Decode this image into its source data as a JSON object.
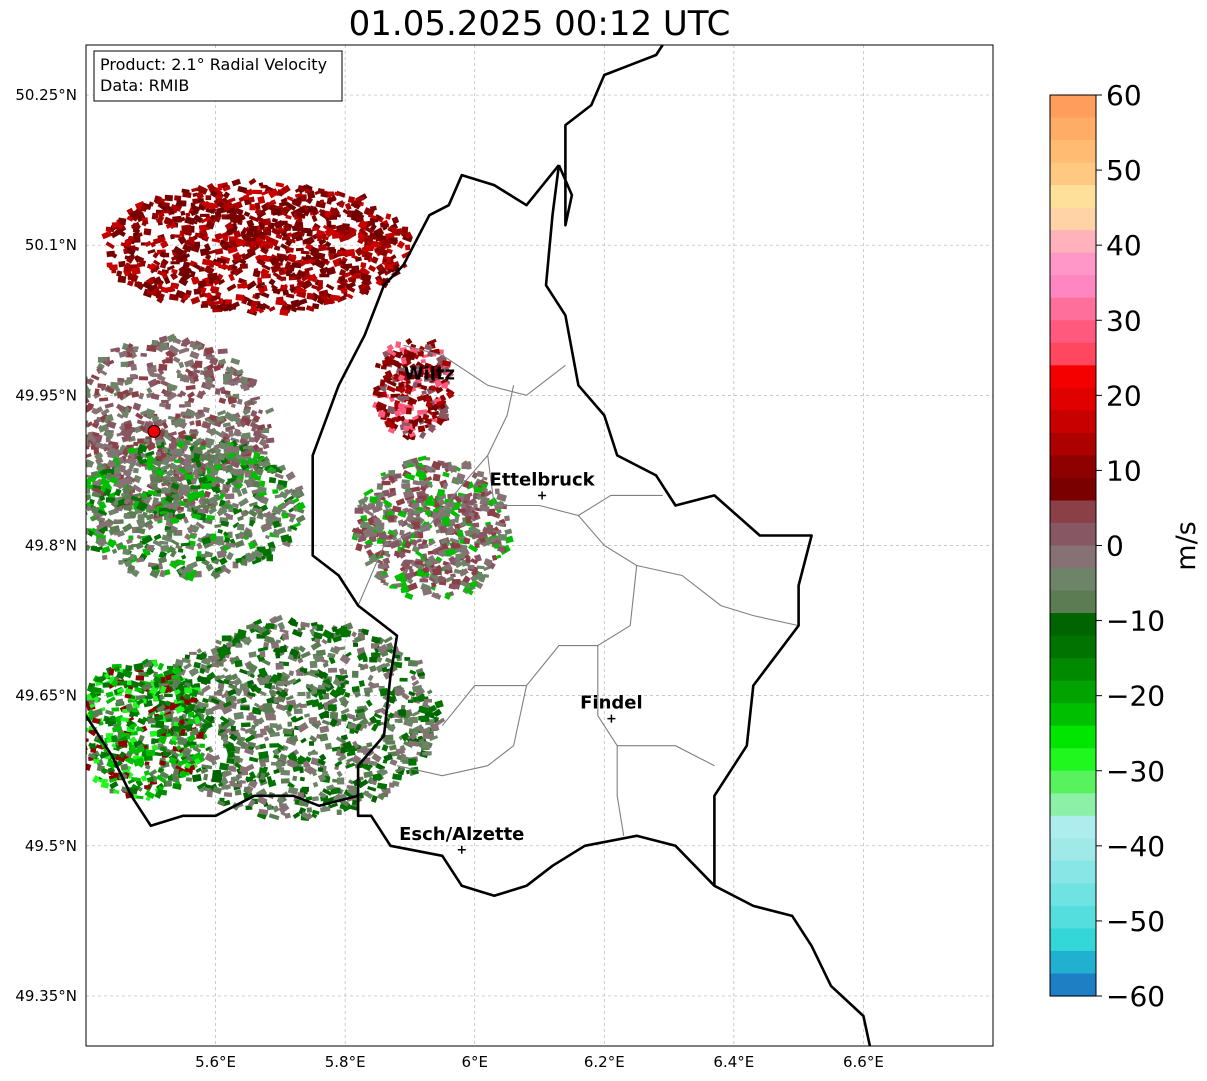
{
  "title": "01.05.2025 00:12 UTC",
  "info_box": {
    "product": "Product: 2.1° Radial Velocity",
    "data": "Data: RMIB"
  },
  "map_extent": {
    "lon_min": 5.4,
    "lon_max": 6.8,
    "lat_min": 49.3,
    "lat_max": 50.3
  },
  "axes": {
    "lon_ticks": [
      {
        "value": 5.6,
        "label": "5.6°E"
      },
      {
        "value": 5.8,
        "label": "5.8°E"
      },
      {
        "value": 6.0,
        "label": "6°E"
      },
      {
        "value": 6.2,
        "label": "6.2°E"
      },
      {
        "value": 6.4,
        "label": "6.4°E"
      },
      {
        "value": 6.6,
        "label": "6.6°E"
      }
    ],
    "lat_ticks": [
      {
        "value": 50.25,
        "label": "50.25°N"
      },
      {
        "value": 50.1,
        "label": "50.1°N"
      },
      {
        "value": 49.95,
        "label": "49.95°N"
      },
      {
        "value": 49.8,
        "label": "49.8°N"
      },
      {
        "value": 49.65,
        "label": "49.65°N"
      },
      {
        "value": 49.5,
        "label": "49.5°N"
      },
      {
        "value": 49.35,
        "label": "49.35°N"
      }
    ]
  },
  "radar_site": {
    "lon": 5.505,
    "lat": 49.914,
    "color": "#ee0000"
  },
  "cities": [
    {
      "name": "Wiltz",
      "lon": 5.93,
      "lat": 49.966,
      "marker": false
    },
    {
      "name": "Ettelbruck",
      "lon": 6.104,
      "lat": 49.85,
      "marker": true
    },
    {
      "name": "Findel",
      "lon": 6.211,
      "lat": 49.627,
      "marker": true
    },
    {
      "name": "Esch/Alzette",
      "lon": 5.98,
      "lat": 49.496,
      "marker": true
    }
  ],
  "colorbar": {
    "label": "m/s",
    "min": -60,
    "max": 60,
    "ticks": [
      {
        "value": 60,
        "label": "60"
      },
      {
        "value": 50,
        "label": "50"
      },
      {
        "value": 40,
        "label": "40"
      },
      {
        "value": 30,
        "label": "30"
      },
      {
        "value": 20,
        "label": "20"
      },
      {
        "value": 10,
        "label": "10"
      },
      {
        "value": 0,
        "label": "0"
      },
      {
        "value": -10,
        "label": "−10"
      },
      {
        "value": -20,
        "label": "−20"
      },
      {
        "value": -30,
        "label": "−30"
      },
      {
        "value": -40,
        "label": "−40"
      },
      {
        "value": -50,
        "label": "−50"
      },
      {
        "value": -60,
        "label": "−60"
      }
    ],
    "segments": [
      {
        "from": 57,
        "to": 60,
        "color": "#ff9d5c"
      },
      {
        "from": 54,
        "to": 57,
        "color": "#ffac66"
      },
      {
        "from": 51,
        "to": 54,
        "color": "#ffbb72"
      },
      {
        "from": 48,
        "to": 51,
        "color": "#ffc982"
      },
      {
        "from": 45,
        "to": 48,
        "color": "#ffe09a"
      },
      {
        "from": 42,
        "to": 45,
        "color": "#ffd3a6"
      },
      {
        "from": 39,
        "to": 42,
        "color": "#ffb2bb"
      },
      {
        "from": 36,
        "to": 39,
        "color": "#ff98c8"
      },
      {
        "from": 33,
        "to": 36,
        "color": "#ff86c0"
      },
      {
        "from": 30,
        "to": 33,
        "color": "#ff6f9c"
      },
      {
        "from": 27,
        "to": 30,
        "color": "#ff5a7e"
      },
      {
        "from": 24,
        "to": 27,
        "color": "#ff4860"
      },
      {
        "from": 21,
        "to": 24,
        "color": "#f40000"
      },
      {
        "from": 18,
        "to": 21,
        "color": "#e00000"
      },
      {
        "from": 15,
        "to": 18,
        "color": "#c80000"
      },
      {
        "from": 12,
        "to": 15,
        "color": "#ad0000"
      },
      {
        "from": 9,
        "to": 12,
        "color": "#8f0000"
      },
      {
        "from": 6,
        "to": 9,
        "color": "#7a0000"
      },
      {
        "from": 3,
        "to": 6,
        "color": "#8b3f47"
      },
      {
        "from": 0,
        "to": 3,
        "color": "#875863"
      },
      {
        "from": -3,
        "to": 0,
        "color": "#867274"
      },
      {
        "from": -6,
        "to": -3,
        "color": "#6d8468"
      },
      {
        "from": -9,
        "to": -6,
        "color": "#5c7d54"
      },
      {
        "from": -12,
        "to": -9,
        "color": "#006400"
      },
      {
        "from": -15,
        "to": -12,
        "color": "#007300"
      },
      {
        "from": -18,
        "to": -15,
        "color": "#008a00"
      },
      {
        "from": -21,
        "to": -18,
        "color": "#00a300"
      },
      {
        "from": -24,
        "to": -21,
        "color": "#00bf00"
      },
      {
        "from": -27,
        "to": -24,
        "color": "#00e600"
      },
      {
        "from": -30,
        "to": -27,
        "color": "#1ff71f"
      },
      {
        "from": -33,
        "to": -30,
        "color": "#58f25e"
      },
      {
        "from": -36,
        "to": -33,
        "color": "#8cf0a6"
      },
      {
        "from": -39,
        "to": -36,
        "color": "#aeeded"
      },
      {
        "from": -42,
        "to": -39,
        "color": "#9fe9e9"
      },
      {
        "from": -45,
        "to": -42,
        "color": "#88e6e6"
      },
      {
        "from": -48,
        "to": -45,
        "color": "#6fe2e2"
      },
      {
        "from": -51,
        "to": -48,
        "color": "#55dede"
      },
      {
        "from": -54,
        "to": -51,
        "color": "#33d7d7"
      },
      {
        "from": -57,
        "to": -54,
        "color": "#22b0d0"
      },
      {
        "from": -60,
        "to": -57,
        "color": "#1e7fc4"
      }
    ]
  },
  "borders": {
    "color": "#000000",
    "national": [
      {
        "name": "germany-luxembourg",
        "points": [
          [
            6.13,
            50.18
          ],
          [
            6.12,
            50.13
          ],
          [
            6.11,
            50.06
          ],
          [
            6.14,
            50.03
          ],
          [
            6.16,
            49.96
          ],
          [
            6.2,
            49.93
          ],
          [
            6.22,
            49.89
          ],
          [
            6.28,
            49.87
          ],
          [
            6.31,
            49.84
          ],
          [
            6.37,
            49.85
          ],
          [
            6.44,
            49.81
          ],
          [
            6.52,
            49.81
          ],
          [
            6.5,
            49.76
          ],
          [
            6.5,
            49.72
          ],
          [
            6.43,
            49.66
          ],
          [
            6.42,
            49.6
          ],
          [
            6.37,
            49.55
          ],
          [
            6.37,
            49.46
          ],
          [
            6.43,
            49.44
          ],
          [
            6.49,
            49.43
          ],
          [
            6.52,
            49.4
          ],
          [
            6.55,
            49.36
          ],
          [
            6.6,
            49.33
          ],
          [
            6.61,
            49.3
          ]
        ]
      },
      {
        "name": "germany-belgium",
        "points": [
          [
            6.13,
            50.18
          ],
          [
            6.15,
            50.15
          ],
          [
            6.14,
            50.12
          ],
          [
            6.14,
            50.22
          ],
          [
            6.18,
            50.24
          ],
          [
            6.2,
            50.27
          ],
          [
            6.28,
            50.29
          ],
          [
            6.29,
            50.3
          ]
        ]
      },
      {
        "name": "luxembourg-belgium",
        "points": [
          [
            6.13,
            50.18
          ],
          [
            6.08,
            50.14
          ],
          [
            6.03,
            50.16
          ],
          [
            5.98,
            50.17
          ],
          [
            5.96,
            50.14
          ],
          [
            5.93,
            50.13
          ],
          [
            5.89,
            50.08
          ],
          [
            5.86,
            50.06
          ],
          [
            5.83,
            50.01
          ],
          [
            5.79,
            49.96
          ],
          [
            5.75,
            49.89
          ],
          [
            5.75,
            49.83
          ],
          [
            5.75,
            49.79
          ],
          [
            5.79,
            49.77
          ],
          [
            5.82,
            49.74
          ],
          [
            5.88,
            49.71
          ],
          [
            5.87,
            49.67
          ],
          [
            5.86,
            49.61
          ],
          [
            5.82,
            49.58
          ],
          [
            5.82,
            49.53
          ],
          [
            5.84,
            49.53
          ],
          [
            5.87,
            49.5
          ],
          [
            5.95,
            49.49
          ],
          [
            5.98,
            49.46
          ],
          [
            6.03,
            49.45
          ],
          [
            6.08,
            49.46
          ],
          [
            6.12,
            49.48
          ],
          [
            6.17,
            49.5
          ],
          [
            6.25,
            49.51
          ],
          [
            6.31,
            49.5
          ],
          [
            6.37,
            49.46
          ]
        ]
      },
      {
        "name": "belgium-france",
        "points": [
          [
            5.4,
            49.63
          ],
          [
            5.44,
            49.59
          ],
          [
            5.47,
            49.55
          ],
          [
            5.5,
            49.52
          ],
          [
            5.55,
            49.53
          ],
          [
            5.6,
            49.53
          ],
          [
            5.66,
            49.55
          ],
          [
            5.72,
            49.55
          ],
          [
            5.76,
            49.54
          ],
          [
            5.82,
            49.55
          ]
        ]
      }
    ],
    "cantonal": [
      {
        "points": [
          [
            5.89,
            50.0
          ],
          [
            5.95,
            49.99
          ],
          [
            6.02,
            49.96
          ],
          [
            6.08,
            49.95
          ],
          [
            6.14,
            49.98
          ]
        ]
      },
      {
        "points": [
          [
            6.06,
            49.96
          ],
          [
            6.05,
            49.93
          ],
          [
            6.02,
            49.89
          ],
          [
            6.03,
            49.84
          ],
          [
            6.1,
            49.84
          ],
          [
            6.16,
            49.83
          ],
          [
            6.21,
            49.85
          ],
          [
            6.29,
            49.85
          ]
        ]
      },
      {
        "points": [
          [
            6.02,
            49.89
          ],
          [
            5.98,
            49.86
          ],
          [
            5.93,
            49.82
          ],
          [
            5.86,
            49.8
          ],
          [
            5.82,
            49.74
          ]
        ]
      },
      {
        "points": [
          [
            6.16,
            49.83
          ],
          [
            6.2,
            49.8
          ],
          [
            6.25,
            49.78
          ],
          [
            6.24,
            49.72
          ],
          [
            6.19,
            49.7
          ],
          [
            6.13,
            49.7
          ],
          [
            6.08,
            49.66
          ],
          [
            6.0,
            49.66
          ],
          [
            5.95,
            49.62
          ]
        ]
      },
      {
        "points": [
          [
            6.25,
            49.78
          ],
          [
            6.32,
            49.77
          ],
          [
            6.38,
            49.74
          ],
          [
            6.43,
            49.73
          ],
          [
            6.5,
            49.72
          ]
        ]
      },
      {
        "points": [
          [
            6.19,
            49.7
          ],
          [
            6.19,
            49.63
          ],
          [
            6.22,
            49.6
          ],
          [
            6.31,
            49.6
          ],
          [
            6.37,
            49.58
          ]
        ]
      },
      {
        "points": [
          [
            6.08,
            49.66
          ],
          [
            6.06,
            49.6
          ],
          [
            6.02,
            49.58
          ],
          [
            5.95,
            49.57
          ],
          [
            5.88,
            49.58
          ]
        ]
      },
      {
        "points": [
          [
            6.22,
            49.6
          ],
          [
            6.22,
            49.55
          ],
          [
            6.23,
            49.51
          ]
        ]
      }
    ]
  },
  "echo_zones": [
    {
      "name": "receding-north",
      "center_lon": 5.66,
      "center_lat": 50.1,
      "rx": 0.24,
      "ry": 0.065,
      "count": 900,
      "color": "#7a0000"
    },
    {
      "name": "receding-wiltz",
      "center_lon": 5.9,
      "center_lat": 49.96,
      "rx": 0.06,
      "ry": 0.05,
      "count": 220,
      "color": "#8f0000"
    },
    {
      "name": "radar-near-field",
      "center_lon": 5.52,
      "center_lat": 49.92,
      "rx": 0.16,
      "ry": 0.09,
      "count": 700,
      "color": "#867274"
    },
    {
      "name": "west-zero-band",
      "center_lon": 5.55,
      "center_lat": 49.84,
      "rx": 0.18,
      "ry": 0.07,
      "count": 650,
      "color": "#6d8468"
    },
    {
      "name": "east-mauve",
      "center_lon": 5.93,
      "center_lat": 49.82,
      "rx": 0.12,
      "ry": 0.07,
      "count": 550,
      "color": "#875863"
    },
    {
      "name": "south-green-grey",
      "center_lon": 5.72,
      "center_lat": 49.63,
      "rx": 0.22,
      "ry": 0.1,
      "count": 1000,
      "color": "#5c7d54"
    },
    {
      "name": "southwest-green",
      "center_lon": 5.48,
      "center_lat": 49.62,
      "rx": 0.1,
      "ry": 0.07,
      "count": 450,
      "color": "#007300"
    }
  ]
}
